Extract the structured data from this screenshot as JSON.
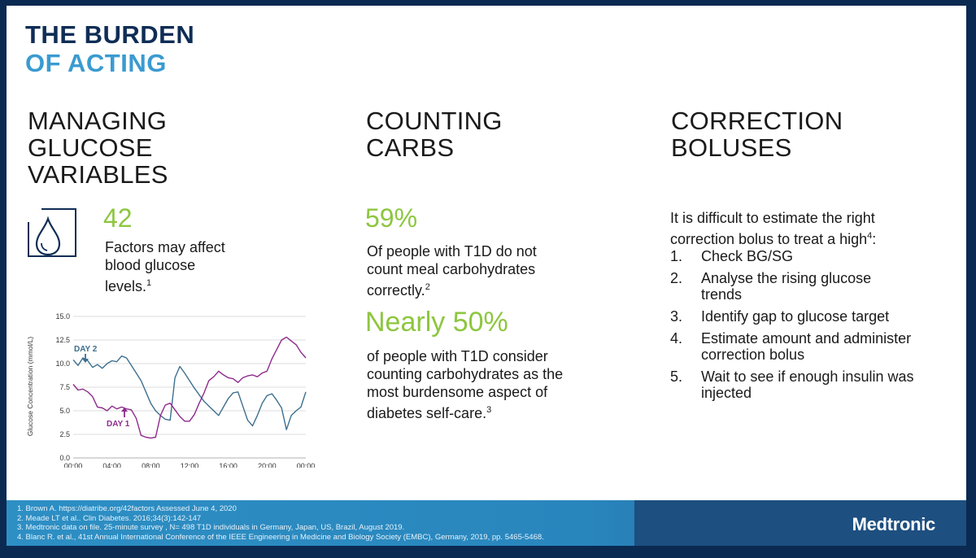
{
  "title": {
    "line1": "THE BURDEN",
    "line2": "OF ACTING"
  },
  "columns": [
    {
      "heading": "MANAGING\nGLUCOSE\nVARIABLES",
      "stat": "42",
      "stat_text": "Factors may affect blood glucose levels.",
      "stat_ref": "1",
      "icon": "water-drop-icon"
    },
    {
      "heading": "COUNTING\nCARBS",
      "stat1": "59%",
      "stat1_text": "Of people with T1D do not count  meal carbohydrates correctly.",
      "stat1_ref": "2",
      "stat2": "Nearly 50%",
      "stat2_text": "of people with T1D consider counting carbohydrates as the most burdensome aspect of diabetes self-care.",
      "stat2_ref": "3"
    },
    {
      "heading": "CORRECTION\nBOLUSES",
      "intro": "It is difficult to estimate the right correction bolus to treat a high",
      "intro_ref": "4",
      "intro_end": ":",
      "steps": [
        {
          "num": "1.",
          "text": "Check BG/SG"
        },
        {
          "num": "2.",
          "text": "Analyse the rising glucose trends"
        },
        {
          "num": "3.",
          "text": "Identify gap to glucose target"
        },
        {
          "num": "4.",
          "text": "Estimate amount and administer correction bolus"
        },
        {
          "num": "5.",
          "text": "Wait to see if enough insulin was injected"
        }
      ]
    }
  ],
  "chart_data": {
    "type": "line",
    "ylabel": "Glucose Concentration (mmol/L)",
    "xlabel": "",
    "ylim": [
      0,
      15
    ],
    "yticks": [
      "0.0",
      "2.5",
      "5.0",
      "7.5",
      "10.0",
      "12.5",
      "15.0"
    ],
    "xticks": [
      "00:00",
      "04:00",
      "08:00",
      "12:00",
      "16:00",
      "20:00",
      "00:00"
    ],
    "grid": "horizontal",
    "series": [
      {
        "name": "DAY 2",
        "color": "#3d6f8f",
        "x": [
          0,
          0.5,
          1,
          1.5,
          2,
          2.5,
          3,
          3.5,
          4,
          4.5,
          5,
          5.5,
          6,
          6.5,
          7,
          7.5,
          8,
          8.5,
          9,
          9.5,
          10,
          10.5,
          11,
          11.5,
          12,
          12.5,
          13,
          13.5,
          14,
          14.5,
          15,
          15.5,
          16,
          16.5,
          17,
          17.5,
          18,
          18.5,
          19,
          19.5,
          20,
          20.5,
          21,
          21.5,
          22,
          22.5,
          23,
          23.5,
          24
        ],
        "values": [
          10.4,
          9.8,
          10.6,
          10.3,
          9.6,
          9.9,
          9.5,
          10.0,
          10.3,
          10.2,
          10.8,
          10.6,
          9.8,
          9.0,
          8.2,
          7.0,
          5.8,
          5.0,
          4.5,
          4.1,
          4.0,
          8.5,
          9.7,
          9.0,
          8.2,
          7.4,
          6.7,
          6.0,
          5.5,
          5.0,
          4.5,
          5.4,
          6.3,
          6.9,
          7.0,
          5.5,
          4.0,
          3.4,
          4.5,
          5.8,
          6.6,
          6.8,
          6.1,
          5.3,
          3.0,
          4.5,
          5.0,
          5.4,
          7.0
        ]
      },
      {
        "name": "DAY 1",
        "color": "#8e2a8c",
        "x": [
          0,
          0.5,
          1,
          1.5,
          2,
          2.5,
          3,
          3.5,
          4,
          4.5,
          5,
          5.5,
          6,
          6.5,
          7,
          7.5,
          8,
          8.5,
          9,
          9.5,
          10,
          10.5,
          11,
          11.5,
          12,
          12.5,
          13,
          13.5,
          14,
          14.5,
          15,
          15.5,
          16,
          16.5,
          17,
          17.5,
          18,
          18.5,
          19,
          19.5,
          20,
          20.5,
          21,
          21.5,
          22,
          22.5,
          23,
          23.5,
          24
        ],
        "values": [
          7.8,
          7.2,
          7.3,
          7.0,
          6.5,
          5.4,
          5.3,
          5.0,
          5.5,
          5.2,
          5.4,
          5.2,
          5.1,
          4.2,
          2.4,
          2.2,
          2.1,
          2.2,
          4.5,
          5.6,
          5.8,
          5.1,
          4.4,
          3.9,
          3.9,
          4.6,
          5.8,
          6.9,
          8.2,
          8.6,
          9.2,
          8.8,
          8.5,
          8.4,
          8.0,
          8.5,
          8.7,
          8.8,
          8.6,
          9.0,
          9.2,
          10.5,
          11.5,
          12.5,
          12.8,
          12.4,
          12.0,
          11.2,
          10.6
        ]
      }
    ],
    "annotations": [
      {
        "text": "DAY 2"
      },
      {
        "text": "DAY 1"
      }
    ]
  },
  "footer": {
    "refs": [
      "1. Brown A. https://diatribe.org/42factors Assessed June 4, 2020",
      "2. Meade LT et al.. Clin Diabetes. 2016;34(3):142-147",
      "3. Medtronic data on file. 25-minute survey , N= 498 T1D individuals in Germany, Japan, US, Brazil, August 2019.",
      "4. Blanc R. et al., 41st Annual International Conference of the IEEE Engineering in Medicine and Biology Society (EMBC), Germany, 2019, pp. 5465-5468."
    ],
    "logo": "Medtronic"
  },
  "colors": {
    "navy": "#0f2d56",
    "blue": "#3a9bd0",
    "green": "#8dc63f",
    "footer": "#2d8fc4"
  }
}
